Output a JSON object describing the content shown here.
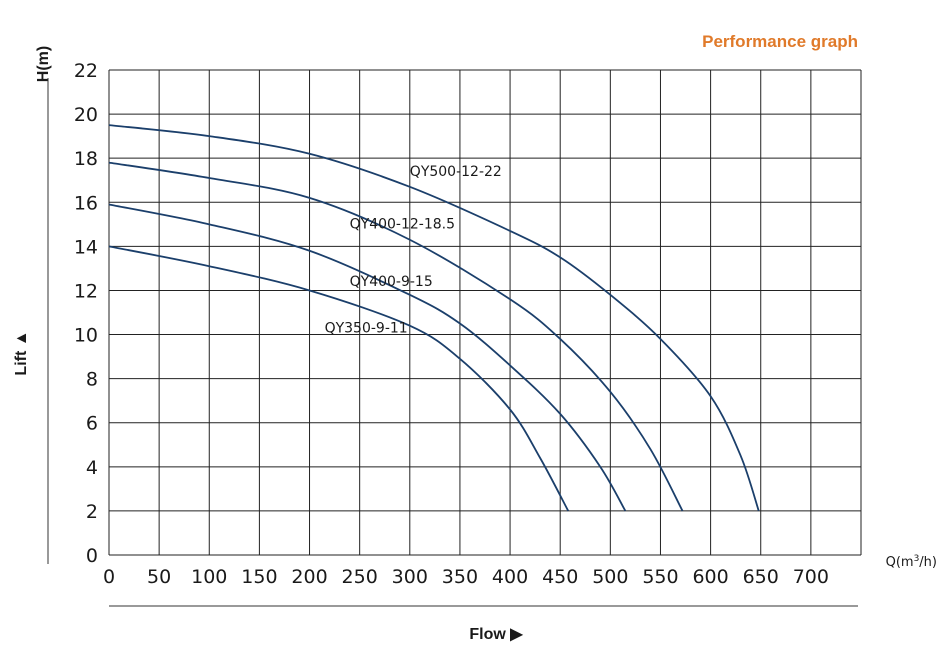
{
  "chart_data": {
    "type": "line",
    "title": "Performance graph",
    "ylabel": "Lift ▲",
    "xlabel": "Flow ▶",
    "y_unit": "H(m)",
    "x_unit_prefix": "Q(m",
    "x_unit_sup": "3",
    "x_unit_suffix": "/h)",
    "xlim": [
      0,
      750
    ],
    "ylim": [
      0,
      22
    ],
    "x_ticks": [
      0,
      50,
      100,
      150,
      200,
      250,
      300,
      350,
      400,
      450,
      500,
      550,
      600,
      650,
      700
    ],
    "y_ticks": [
      0,
      2,
      4,
      6,
      8,
      10,
      12,
      14,
      16,
      18,
      20,
      22
    ],
    "grid": true,
    "title_color": "#e07a2a",
    "line_color": "#1b3f6b",
    "series": [
      {
        "name": "QY500-12-22",
        "points": [
          [
            0,
            19.5
          ],
          [
            100,
            19.0
          ],
          [
            200,
            18.2
          ],
          [
            300,
            16.7
          ],
          [
            400,
            14.7
          ],
          [
            450,
            13.5
          ],
          [
            500,
            11.8
          ],
          [
            550,
            9.8
          ],
          [
            600,
            7.2
          ],
          [
            630,
            4.5
          ],
          [
            648,
            2.0
          ]
        ]
      },
      {
        "name": "QY400-12-18.5",
        "points": [
          [
            0,
            17.8
          ],
          [
            100,
            17.1
          ],
          [
            200,
            16.2
          ],
          [
            300,
            14.3
          ],
          [
            400,
            11.6
          ],
          [
            450,
            9.8
          ],
          [
            500,
            7.4
          ],
          [
            540,
            4.8
          ],
          [
            572,
            2.0
          ]
        ]
      },
      {
        "name": "QY400-9-15",
        "points": [
          [
            0,
            15.9
          ],
          [
            100,
            15.0
          ],
          [
            200,
            13.8
          ],
          [
            300,
            11.8
          ],
          [
            350,
            10.5
          ],
          [
            400,
            8.6
          ],
          [
            450,
            6.4
          ],
          [
            490,
            4.0
          ],
          [
            515,
            2.0
          ]
        ]
      },
      {
        "name": "QY350-9-11",
        "points": [
          [
            0,
            14.0
          ],
          [
            100,
            13.1
          ],
          [
            200,
            12.0
          ],
          [
            300,
            10.4
          ],
          [
            350,
            8.9
          ],
          [
            400,
            6.6
          ],
          [
            430,
            4.4
          ],
          [
            458,
            2.0
          ]
        ]
      }
    ]
  }
}
